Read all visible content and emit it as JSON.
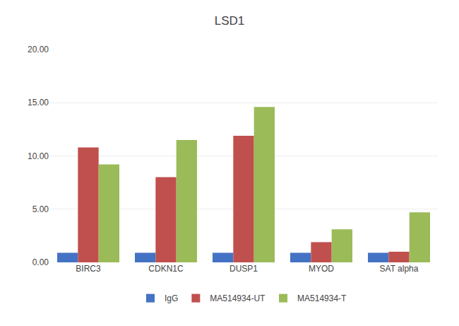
{
  "chart_data": {
    "type": "bar",
    "title": "LSD1",
    "categories": [
      "BIRC3",
      "CDKN1C",
      "DUSP1",
      "MYOD",
      "SAT alpha"
    ],
    "series": [
      {
        "name": "IgG",
        "color": "#4472C4",
        "values": [
          0.9,
          0.9,
          0.9,
          0.9,
          0.9
        ]
      },
      {
        "name": "MA514934-UT",
        "color": "#C0504D",
        "values": [
          10.8,
          8.0,
          11.9,
          1.9,
          1.0
        ]
      },
      {
        "name": "MA514934-T",
        "color": "#9BBB59",
        "values": [
          9.2,
          11.5,
          14.6,
          3.1,
          4.7
        ]
      }
    ],
    "ylim": [
      0,
      20
    ],
    "yticks": [
      {
        "value": 0,
        "label": "0.00"
      },
      {
        "value": 5,
        "label": "5.00"
      },
      {
        "value": 10,
        "label": "10.00"
      },
      {
        "value": 15,
        "label": "15.00"
      },
      {
        "value": 20,
        "label": "20.00"
      }
    ],
    "grid": true,
    "legend": "bottom"
  }
}
